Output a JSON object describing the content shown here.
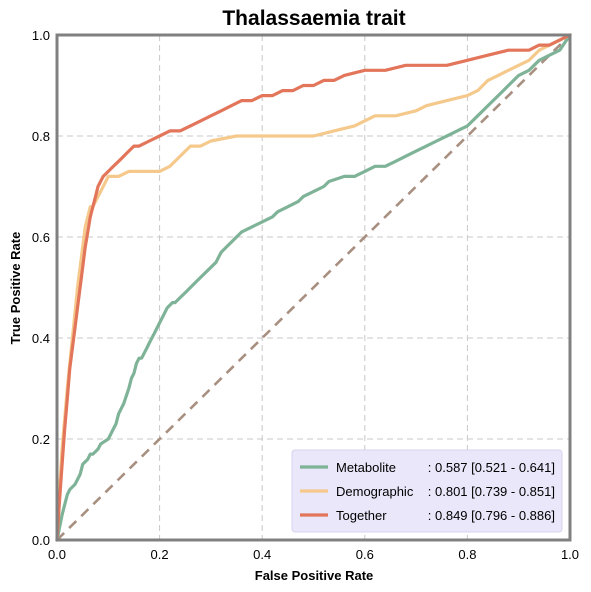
{
  "chart_data": {
    "type": "line",
    "title": "Thalassaemia trait",
    "xlabel": "False Positive Rate",
    "ylabel": "True Positive Rate",
    "xlim": [
      0,
      1
    ],
    "ylim": [
      0,
      1
    ],
    "xticks": [
      "0.0",
      "0.2",
      "0.4",
      "0.6",
      "0.8",
      "1.0"
    ],
    "yticks": [
      "0.0",
      "0.2",
      "0.4",
      "0.6",
      "0.8",
      "1.0"
    ],
    "grid": true,
    "legend_position": "lower-right",
    "diagonal": {
      "x": [
        0,
        1
      ],
      "y": [
        0,
        1
      ],
      "color": "#a88f80",
      "style": "dashed"
    },
    "series": [
      {
        "name": "Metabolite",
        "stats": ": 0.587 [0.521 - 0.641]",
        "color": "#7fb398",
        "x": [
          0,
          0.01,
          0.015,
          0.02,
          0.025,
          0.035,
          0.045,
          0.05,
          0.06,
          0.065,
          0.07,
          0.08,
          0.085,
          0.1,
          0.11,
          0.115,
          0.12,
          0.13,
          0.14,
          0.145,
          0.15,
          0.155,
          0.16,
          0.165,
          0.175,
          0.18,
          0.19,
          0.2,
          0.205,
          0.21,
          0.215,
          0.225,
          0.23,
          0.24,
          0.25,
          0.26,
          0.27,
          0.28,
          0.29,
          0.3,
          0.31,
          0.315,
          0.32,
          0.33,
          0.34,
          0.35,
          0.36,
          0.38,
          0.4,
          0.42,
          0.43,
          0.45,
          0.47,
          0.48,
          0.5,
          0.52,
          0.53,
          0.56,
          0.58,
          0.6,
          0.62,
          0.64,
          0.66,
          0.68,
          0.7,
          0.72,
          0.74,
          0.76,
          0.78,
          0.8,
          0.82,
          0.84,
          0.86,
          0.87,
          0.88,
          0.9,
          0.92,
          0.93,
          0.94,
          0.96,
          0.98,
          1.0
        ],
        "y": [
          0,
          0.05,
          0.07,
          0.09,
          0.1,
          0.11,
          0.13,
          0.15,
          0.16,
          0.17,
          0.17,
          0.18,
          0.19,
          0.2,
          0.22,
          0.23,
          0.25,
          0.27,
          0.3,
          0.32,
          0.33,
          0.35,
          0.36,
          0.36,
          0.38,
          0.39,
          0.41,
          0.43,
          0.44,
          0.45,
          0.46,
          0.47,
          0.47,
          0.48,
          0.49,
          0.5,
          0.51,
          0.52,
          0.53,
          0.54,
          0.55,
          0.56,
          0.57,
          0.58,
          0.59,
          0.6,
          0.61,
          0.62,
          0.63,
          0.64,
          0.65,
          0.66,
          0.67,
          0.68,
          0.69,
          0.7,
          0.71,
          0.72,
          0.72,
          0.73,
          0.74,
          0.74,
          0.75,
          0.76,
          0.77,
          0.78,
          0.79,
          0.8,
          0.81,
          0.82,
          0.84,
          0.86,
          0.88,
          0.89,
          0.9,
          0.92,
          0.93,
          0.94,
          0.95,
          0.96,
          0.97,
          1.0
        ]
      },
      {
        "name": "Demographic",
        "stats": ": 0.801 [0.739 - 0.851]",
        "color": "#f5c98b",
        "x": [
          0,
          0.005,
          0.01,
          0.015,
          0.02,
          0.025,
          0.03,
          0.035,
          0.04,
          0.045,
          0.05,
          0.055,
          0.06,
          0.065,
          0.07,
          0.08,
          0.09,
          0.1,
          0.12,
          0.14,
          0.16,
          0.18,
          0.2,
          0.22,
          0.24,
          0.26,
          0.28,
          0.3,
          0.35,
          0.4,
          0.45,
          0.46,
          0.48,
          0.5,
          0.54,
          0.58,
          0.62,
          0.66,
          0.7,
          0.72,
          0.76,
          0.8,
          0.82,
          0.84,
          0.86,
          0.88,
          0.9,
          0.92,
          0.94,
          0.96,
          0.98,
          1.0
        ],
        "y": [
          0,
          0.1,
          0.18,
          0.24,
          0.3,
          0.35,
          0.4,
          0.45,
          0.5,
          0.54,
          0.58,
          0.62,
          0.64,
          0.66,
          0.66,
          0.68,
          0.7,
          0.72,
          0.72,
          0.73,
          0.73,
          0.73,
          0.73,
          0.74,
          0.76,
          0.78,
          0.78,
          0.79,
          0.8,
          0.8,
          0.8,
          0.8,
          0.8,
          0.8,
          0.81,
          0.82,
          0.84,
          0.84,
          0.85,
          0.86,
          0.87,
          0.88,
          0.89,
          0.91,
          0.92,
          0.93,
          0.94,
          0.95,
          0.97,
          0.98,
          0.99,
          1.0
        ]
      },
      {
        "name": "Together",
        "stats": ": 0.849 [0.796 - 0.886]",
        "color": "#e2755a",
        "x": [
          0,
          0.005,
          0.01,
          0.015,
          0.02,
          0.025,
          0.03,
          0.035,
          0.04,
          0.045,
          0.05,
          0.055,
          0.06,
          0.065,
          0.07,
          0.075,
          0.08,
          0.09,
          0.1,
          0.11,
          0.12,
          0.13,
          0.14,
          0.15,
          0.16,
          0.18,
          0.2,
          0.22,
          0.24,
          0.26,
          0.28,
          0.3,
          0.32,
          0.34,
          0.36,
          0.38,
          0.4,
          0.42,
          0.44,
          0.46,
          0.48,
          0.5,
          0.52,
          0.54,
          0.56,
          0.6,
          0.64,
          0.68,
          0.72,
          0.76,
          0.8,
          0.84,
          0.88,
          0.9,
          0.92,
          0.94,
          0.96,
          0.98,
          1.0
        ],
        "y": [
          0,
          0.08,
          0.15,
          0.22,
          0.28,
          0.34,
          0.38,
          0.42,
          0.46,
          0.5,
          0.54,
          0.58,
          0.61,
          0.64,
          0.66,
          0.68,
          0.7,
          0.72,
          0.73,
          0.74,
          0.75,
          0.76,
          0.77,
          0.78,
          0.78,
          0.79,
          0.8,
          0.81,
          0.81,
          0.82,
          0.83,
          0.84,
          0.85,
          0.86,
          0.87,
          0.87,
          0.88,
          0.88,
          0.89,
          0.89,
          0.9,
          0.9,
          0.91,
          0.91,
          0.92,
          0.93,
          0.93,
          0.94,
          0.94,
          0.94,
          0.95,
          0.96,
          0.97,
          0.97,
          0.97,
          0.98,
          0.98,
          0.99,
          1.0
        ]
      }
    ]
  }
}
